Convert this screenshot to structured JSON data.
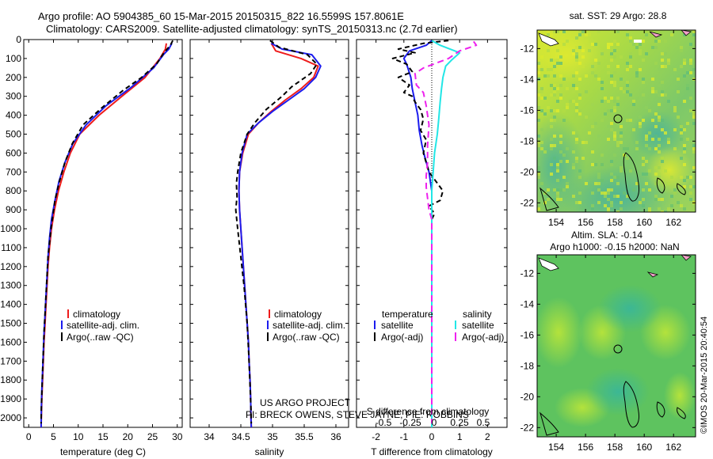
{
  "title": {
    "line1": "Argo profile: AO 5904385_60 15-Mar-2015 20150315_822 16.5599S 157.8061E",
    "line2": "Climatology: CARS2009. Satellite-adjusted climatology: synTS_20150313.nc (2.7d earlier)"
  },
  "colors": {
    "climatology": "#ee1c1c",
    "satellite": "#1c1cee",
    "argo": "#000000",
    "satellite_s": "#22e6e6",
    "argo_s": "#ee22ee"
  },
  "depth_axis": {
    "ticks": [
      0,
      100,
      200,
      300,
      400,
      500,
      600,
      700,
      800,
      900,
      1000,
      1100,
      1200,
      1300,
      1400,
      1500,
      1600,
      1700,
      1800,
      1900,
      2000
    ]
  },
  "credits": {
    "line1": "US ARGO PROJECT",
    "line2": "PI: BRECK OWENS, STEVE JAYNE, PIE: ROBBINS"
  },
  "stamp": "©IMOS 20-Mar-2015 20:40:54",
  "chart_data": [
    {
      "type": "line",
      "name": "temperature",
      "xlabel": "temperature (deg C)",
      "xlim": [
        -1,
        31
      ],
      "ylim": [
        0,
        2050
      ],
      "xticks": [
        0,
        5,
        10,
        15,
        20,
        25,
        30
      ],
      "legend": [
        "climatology",
        "satellite-adj. clim.",
        "Argo(..raw -QC)"
      ],
      "series": [
        {
          "name": "climatology",
          "color": "#ee1c1c",
          "dash": "",
          "points": [
            [
              27.8,
              20
            ],
            [
              27.6,
              50
            ],
            [
              26.5,
              100
            ],
            [
              23.5,
              200
            ],
            [
              18.8,
              300
            ],
            [
              14.2,
              400
            ],
            [
              10.3,
              500
            ],
            [
              8.4,
              600
            ],
            [
              7.1,
              700
            ],
            [
              6.0,
              800
            ],
            [
              5.2,
              900
            ],
            [
              4.6,
              1000
            ],
            [
              4.2,
              1100
            ],
            [
              3.9,
              1200
            ],
            [
              3.7,
              1300
            ],
            [
              3.5,
              1400
            ],
            [
              3.3,
              1500
            ],
            [
              3.1,
              1600
            ],
            [
              2.95,
              1700
            ],
            [
              2.8,
              1800
            ],
            [
              2.65,
              1900
            ],
            [
              2.55,
              2000
            ],
            [
              2.5,
              2050
            ]
          ]
        },
        {
          "name": "satellite-adj. clim.",
          "color": "#1c1cee",
          "dash": "",
          "points": [
            [
              28.9,
              20
            ],
            [
              28.3,
              50
            ],
            [
              27.2,
              80
            ],
            [
              25.2,
              150
            ],
            [
              20.8,
              250
            ],
            [
              15.6,
              350
            ],
            [
              11.6,
              450
            ],
            [
              8.9,
              550
            ],
            [
              7.3,
              650
            ],
            [
              6.1,
              750
            ],
            [
              5.3,
              850
            ],
            [
              4.6,
              950
            ],
            [
              4.2,
              1050
            ],
            [
              3.9,
              1150
            ],
            [
              3.7,
              1250
            ],
            [
              3.5,
              1350
            ],
            [
              3.3,
              1450
            ],
            [
              3.1,
              1550
            ],
            [
              2.95,
              1650
            ],
            [
              2.8,
              1750
            ],
            [
              2.65,
              1850
            ],
            [
              2.55,
              1950
            ],
            [
              2.5,
              2050
            ]
          ]
        },
        {
          "name": "Argo(..raw -QC)",
          "color": "#000000",
          "dash": "6 4",
          "points": [
            [
              29.1,
              5
            ],
            [
              28.6,
              30
            ],
            [
              27.3,
              70
            ],
            [
              25.8,
              130
            ],
            [
              22.8,
              200
            ],
            [
              19.0,
              270
            ],
            [
              14.8,
              360
            ],
            [
              11.0,
              450
            ],
            [
              8.8,
              550
            ],
            [
              7.3,
              650
            ],
            [
              6.2,
              750
            ],
            [
              5.3,
              850
            ],
            [
              4.5,
              1000
            ],
            [
              3.9,
              1150
            ],
            [
              3.5,
              1350
            ],
            [
              3.1,
              1550
            ],
            [
              2.8,
              1750
            ],
            [
              2.55,
              1950
            ],
            [
              2.5,
              2030
            ]
          ]
        }
      ]
    },
    {
      "type": "line",
      "name": "salinity",
      "xlabel": "salinity",
      "xlim": [
        33.7,
        36.2
      ],
      "ylim": [
        0,
        2050
      ],
      "xticks": [
        34,
        34.5,
        35,
        35.5,
        36
      ],
      "legend": [
        "climatology",
        "satellite-adj. clim.",
        "Argo(..raw -QC)"
      ],
      "series": [
        {
          "name": "climatology",
          "color": "#ee1c1c",
          "dash": "",
          "points": [
            [
              34.98,
              20
            ],
            [
              35.05,
              60
            ],
            [
              35.45,
              100
            ],
            [
              35.72,
              140
            ],
            [
              35.65,
              200
            ],
            [
              35.45,
              260
            ],
            [
              35.2,
              320
            ],
            [
              34.98,
              380
            ],
            [
              34.78,
              440
            ],
            [
              34.62,
              500
            ],
            [
              34.53,
              600
            ],
            [
              34.48,
              700
            ],
            [
              34.47,
              800
            ],
            [
              34.48,
              900
            ],
            [
              34.5,
              1000
            ],
            [
              34.52,
              1100
            ],
            [
              34.54,
              1200
            ],
            [
              34.56,
              1300
            ],
            [
              34.58,
              1400
            ],
            [
              34.6,
              1500
            ],
            [
              34.62,
              1600
            ],
            [
              34.63,
              1700
            ],
            [
              34.645,
              1800
            ],
            [
              34.655,
              1900
            ],
            [
              34.66,
              2000
            ],
            [
              34.665,
              2050
            ]
          ]
        },
        {
          "name": "satellite-adj. clim.",
          "color": "#1c1cee",
          "dash": "",
          "points": [
            [
              34.98,
              20
            ],
            [
              35.15,
              50
            ],
            [
              35.62,
              80
            ],
            [
              35.76,
              140
            ],
            [
              35.68,
              200
            ],
            [
              35.5,
              260
            ],
            [
              35.25,
              320
            ],
            [
              35.0,
              380
            ],
            [
              34.78,
              440
            ],
            [
              34.6,
              500
            ],
            [
              34.52,
              600
            ],
            [
              34.48,
              700
            ],
            [
              34.47,
              800
            ],
            [
              34.48,
              900
            ],
            [
              34.5,
              1000
            ],
            [
              34.52,
              1100
            ],
            [
              34.54,
              1200
            ],
            [
              34.56,
              1300
            ],
            [
              34.58,
              1400
            ],
            [
              34.6,
              1500
            ],
            [
              34.62,
              1600
            ],
            [
              34.63,
              1700
            ],
            [
              34.645,
              1800
            ],
            [
              34.655,
              1900
            ],
            [
              34.66,
              2000
            ],
            [
              34.665,
              2050
            ]
          ]
        },
        {
          "name": "Argo(..raw -QC)",
          "color": "#000000",
          "dash": "6 4",
          "points": [
            [
              34.96,
              5
            ],
            [
              35.1,
              40
            ],
            [
              35.55,
              80
            ],
            [
              35.7,
              130
            ],
            [
              35.6,
              180
            ],
            [
              35.3,
              250
            ],
            [
              35.15,
              300
            ],
            [
              34.9,
              370
            ],
            [
              34.72,
              440
            ],
            [
              34.6,
              500
            ],
            [
              34.5,
              600
            ],
            [
              34.45,
              700
            ],
            [
              34.43,
              760
            ],
            [
              34.44,
              830
            ],
            [
              34.42,
              900
            ],
            [
              34.45,
              1000
            ],
            [
              34.5,
              1150
            ],
            [
              34.55,
              1300
            ],
            [
              34.6,
              1500
            ],
            [
              34.63,
              1700
            ],
            [
              34.66,
              1950
            ],
            [
              34.665,
              2030
            ]
          ]
        }
      ]
    },
    {
      "type": "line",
      "name": "difference from climatology",
      "xlabel": "T difference from climatology",
      "xlabel2": "S difference from climatology",
      "xlim": [
        -2.7,
        2.7
      ],
      "ylim": [
        0,
        2050
      ],
      "xticks": [
        -2,
        -1,
        0,
        1,
        2
      ],
      "s_ticks": [
        "-0.5",
        "-0.25",
        "0",
        "0.25",
        "0.5"
      ],
      "legend_heads": [
        "temperature",
        "salinity"
      ],
      "legend": [
        "satellite",
        "Argo(-adj)",
        "satellite",
        "Argo(-adj)"
      ],
      "series": [
        {
          "name": "T satellite",
          "color": "#1c1cee",
          "dash": "",
          "points": [
            [
              0.0,
              5
            ],
            [
              -0.2,
              30
            ],
            [
              -0.8,
              60
            ],
            [
              -0.9,
              80
            ],
            [
              -1.0,
              100
            ],
            [
              -0.9,
              130
            ],
            [
              -0.75,
              200
            ],
            [
              -0.7,
              260
            ],
            [
              -0.6,
              330
            ],
            [
              -0.5,
              400
            ],
            [
              -0.45,
              480
            ],
            [
              -0.35,
              560
            ],
            [
              -0.25,
              620
            ],
            [
              -0.1,
              700
            ],
            [
              0.0,
              800
            ],
            [
              0.0,
              2050
            ]
          ]
        },
        {
          "name": "T Argo(-adj)",
          "color": "#000000",
          "dash": "6 4",
          "points": [
            [
              0.6,
              5
            ],
            [
              -0.3,
              20
            ],
            [
              -1.2,
              50
            ],
            [
              -0.6,
              70
            ],
            [
              -1.4,
              100
            ],
            [
              -0.9,
              130
            ],
            [
              -0.7,
              170
            ],
            [
              -1.2,
              200
            ],
            [
              -0.8,
              240
            ],
            [
              -1.0,
              280
            ],
            [
              -0.7,
              300
            ],
            [
              -0.6,
              330
            ],
            [
              -0.4,
              370
            ],
            [
              -0.3,
              420
            ],
            [
              -0.4,
              480
            ],
            [
              -0.2,
              530
            ],
            [
              -0.3,
              600
            ],
            [
              -0.1,
              700
            ],
            [
              0.3,
              780
            ],
            [
              0.4,
              800
            ],
            [
              0.3,
              850
            ],
            [
              -0.1,
              880
            ],
            [
              0.1,
              920
            ],
            [
              0.0,
              950
            ],
            [
              0.0,
              2030
            ]
          ]
        },
        {
          "name": "S satellite",
          "color": "#22e6e6",
          "dash": "",
          "points": [
            [
              0.0,
              5
            ],
            [
              0.3,
              30
            ],
            [
              1.0,
              70
            ],
            [
              0.7,
              110
            ],
            [
              0.5,
              140
            ],
            [
              0.4,
              200
            ],
            [
              0.35,
              260
            ],
            [
              0.3,
              330
            ],
            [
              0.25,
              420
            ],
            [
              0.2,
              500
            ],
            [
              0.1,
              600
            ],
            [
              0.05,
              700
            ],
            [
              0.0,
              800
            ],
            [
              0.0,
              2050
            ]
          ]
        },
        {
          "name": "S Argo(-adj)",
          "color": "#ee22ee",
          "dash": "8 5",
          "points": [
            [
              1.5,
              10
            ],
            [
              1.6,
              30
            ],
            [
              1.0,
              60
            ],
            [
              0.6,
              100
            ],
            [
              -0.3,
              150
            ],
            [
              -0.6,
              180
            ],
            [
              -0.55,
              240
            ],
            [
              -0.3,
              280
            ],
            [
              -0.2,
              350
            ],
            [
              -0.1,
              450
            ],
            [
              -0.15,
              560
            ],
            [
              -0.15,
              650
            ],
            [
              -0.2,
              720
            ],
            [
              -0.2,
              780
            ],
            [
              -0.1,
              900
            ],
            [
              0.0,
              950
            ],
            [
              0.0,
              2030
            ]
          ]
        }
      ]
    },
    {
      "type": "heatmap",
      "name": "sea surface temperature map",
      "title": "sat. SST: 29 Argo: 28.8",
      "xticks": [
        "154",
        "156",
        "158",
        "160",
        "162"
      ],
      "yticks": [
        "-12",
        "-14",
        "-16",
        "-18",
        "-20",
        "-22"
      ],
      "xlim": [
        152.7,
        163.5
      ],
      "ylim": [
        -22.6,
        -10.8
      ],
      "argo_position": [
        157.8061,
        -16.5599
      ]
    },
    {
      "type": "heatmap",
      "name": "sea level anomaly map",
      "title": "Altim. SLA: -0.14",
      "subtitle": "Argo h1000: -0.15 h2000: NaN",
      "xticks": [
        "154",
        "156",
        "158",
        "160",
        "162"
      ],
      "yticks": [
        "-12",
        "-14",
        "-16",
        "-18",
        "-20",
        "-22"
      ],
      "xlim": [
        152.7,
        163.5
      ],
      "ylim": [
        -22.6,
        -10.8
      ],
      "argo_position": [
        157.8061,
        -16.5599
      ]
    }
  ]
}
